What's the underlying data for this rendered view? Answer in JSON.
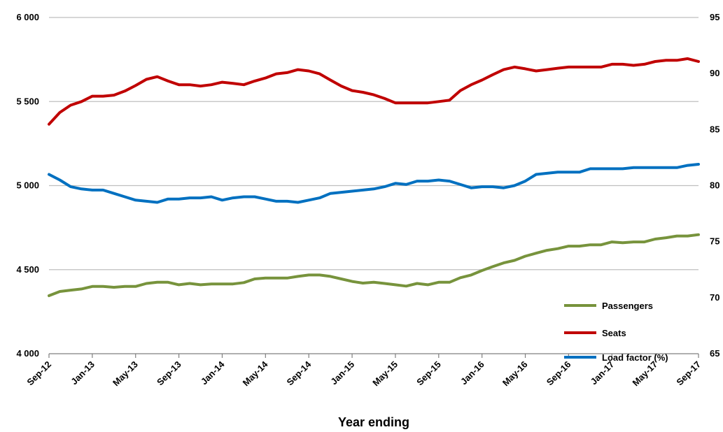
{
  "chart_data": {
    "type": "line",
    "xlabel": "Year ending",
    "x_tick_labels": [
      "Sep-12",
      "Jan-13",
      "May-13",
      "Sep-13",
      "Jan-14",
      "May-14",
      "Sep-14",
      "Jan-15",
      "May-15",
      "Sep-15",
      "Jan-16",
      "May-16",
      "Sep-16",
      "Jan-17",
      "May-17",
      "Sep-17"
    ],
    "y_left": {
      "min": 4000,
      "max": 6000,
      "ticks": [
        4000,
        4500,
        5000,
        5500,
        6000
      ],
      "tick_labels": [
        "4 000",
        "4 500",
        "5 000",
        "5 500",
        "6 000"
      ]
    },
    "y_right": {
      "min": 65,
      "max": 95,
      "ticks": [
        65,
        70,
        75,
        80,
        85,
        90,
        95
      ],
      "tick_labels": [
        "65",
        "70",
        "75",
        "80",
        "85",
        "90",
        "95"
      ]
    },
    "grid": true,
    "legend_position": "bottom-right",
    "series": [
      {
        "name": "Passengers",
        "axis": "left",
        "color": "#77933C",
        "values": [
          4345,
          4370,
          4378,
          4385,
          4400,
          4400,
          4395,
          4400,
          4400,
          4418,
          4425,
          4425,
          4410,
          4418,
          4410,
          4415,
          4415,
          4415,
          4423,
          4445,
          4450,
          4450,
          4450,
          4460,
          4468,
          4468,
          4460,
          4445,
          4430,
          4420,
          4425,
          4418,
          4410,
          4402,
          4418,
          4410,
          4425,
          4425,
          4452,
          4468,
          4495,
          4518,
          4540,
          4555,
          4580,
          4598,
          4615,
          4625,
          4640,
          4640,
          4648,
          4648,
          4665,
          4660,
          4665,
          4665,
          4682,
          4690,
          4700,
          4700,
          4708
        ]
      },
      {
        "name": "Seats",
        "axis": "left",
        "color": "#C00000",
        "values": [
          5365,
          5435,
          5478,
          5500,
          5532,
          5532,
          5538,
          5562,
          5595,
          5632,
          5648,
          5622,
          5600,
          5600,
          5592,
          5600,
          5615,
          5608,
          5600,
          5622,
          5640,
          5665,
          5672,
          5690,
          5682,
          5665,
          5628,
          5592,
          5565,
          5555,
          5540,
          5518,
          5492,
          5492,
          5492,
          5492,
          5500,
          5508,
          5565,
          5600,
          5628,
          5660,
          5690,
          5705,
          5695,
          5682,
          5690,
          5698,
          5705,
          5705,
          5705,
          5705,
          5722,
          5722,
          5715,
          5722,
          5738,
          5745,
          5745,
          5755,
          5738
        ]
      },
      {
        "name": "Load factor (%)",
        "axis": "right",
        "color": "#0070C0",
        "values": [
          81.0,
          80.5,
          79.9,
          79.7,
          79.6,
          79.6,
          79.3,
          79.0,
          78.7,
          78.6,
          78.5,
          78.8,
          78.8,
          78.9,
          78.9,
          79.0,
          78.7,
          78.9,
          79.0,
          79.0,
          78.8,
          78.6,
          78.6,
          78.5,
          78.7,
          78.9,
          79.3,
          79.4,
          79.5,
          79.6,
          79.7,
          79.9,
          80.2,
          80.1,
          80.4,
          80.4,
          80.5,
          80.4,
          80.1,
          79.8,
          79.9,
          79.9,
          79.8,
          80.0,
          80.4,
          81.0,
          81.1,
          81.2,
          81.2,
          81.2,
          81.5,
          81.5,
          81.5,
          81.5,
          81.6,
          81.6,
          81.6,
          81.6,
          81.6,
          81.8,
          81.9
        ]
      }
    ]
  }
}
